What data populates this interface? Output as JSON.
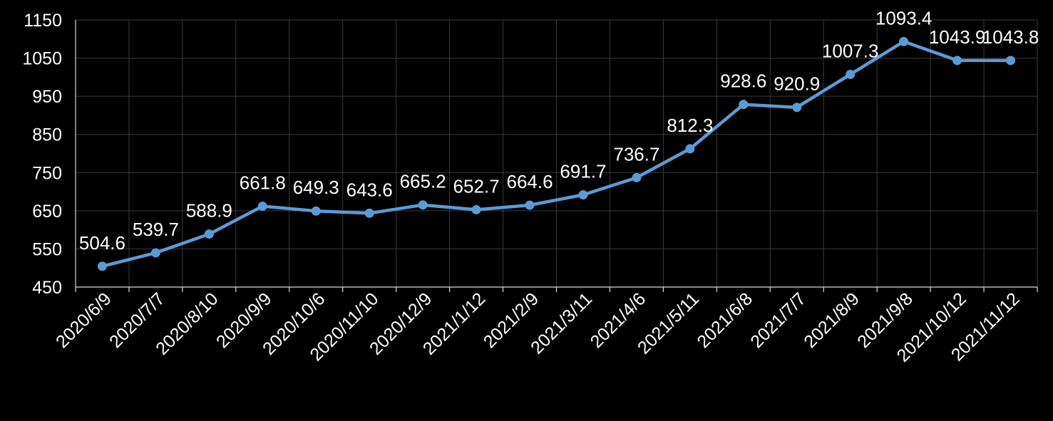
{
  "chart_data": {
    "type": "line",
    "title": "",
    "xlabel": "",
    "ylabel": "",
    "categories": [
      "2020/6/9",
      "2020/7/7",
      "2020/8/10",
      "2020/9/9",
      "2020/10/6",
      "2020/11/10",
      "2020/12/9",
      "2021/1/12",
      "2021/2/9",
      "2021/3/11",
      "2021/4/6",
      "2021/5/11",
      "2021/6/8",
      "2021/7/7",
      "2021/8/9",
      "2021/9/8",
      "2021/10/12",
      "2021/11/12"
    ],
    "values": [
      504.6,
      539.7,
      588.9,
      661.8,
      649.3,
      643.6,
      665.2,
      652.7,
      664.6,
      691.7,
      736.7,
      812.3,
      928.6,
      920.9,
      1007.3,
      1093.4,
      1043.9,
      1043.8
    ],
    "data_labels": [
      "504.6",
      "539.7",
      "588.9",
      "661.8",
      "649.3",
      "643.6",
      "665.2",
      "652.7",
      "664.6",
      "691.7",
      "736.7",
      "812.3",
      "928.6",
      "920.9",
      "1007.3",
      "1093.4",
      "1043.9",
      "1043.8"
    ],
    "yticks": [
      "450",
      "550",
      "650",
      "750",
      "850",
      "950",
      "1050",
      "1150"
    ],
    "ylim": [
      450,
      1150
    ],
    "grid": true,
    "legend": "none",
    "colors": {
      "background": "#000000",
      "line": "#5b9bd5",
      "text": "#ffffff",
      "grid": "#3a3a3a",
      "axis": "#d9d9d9"
    }
  }
}
